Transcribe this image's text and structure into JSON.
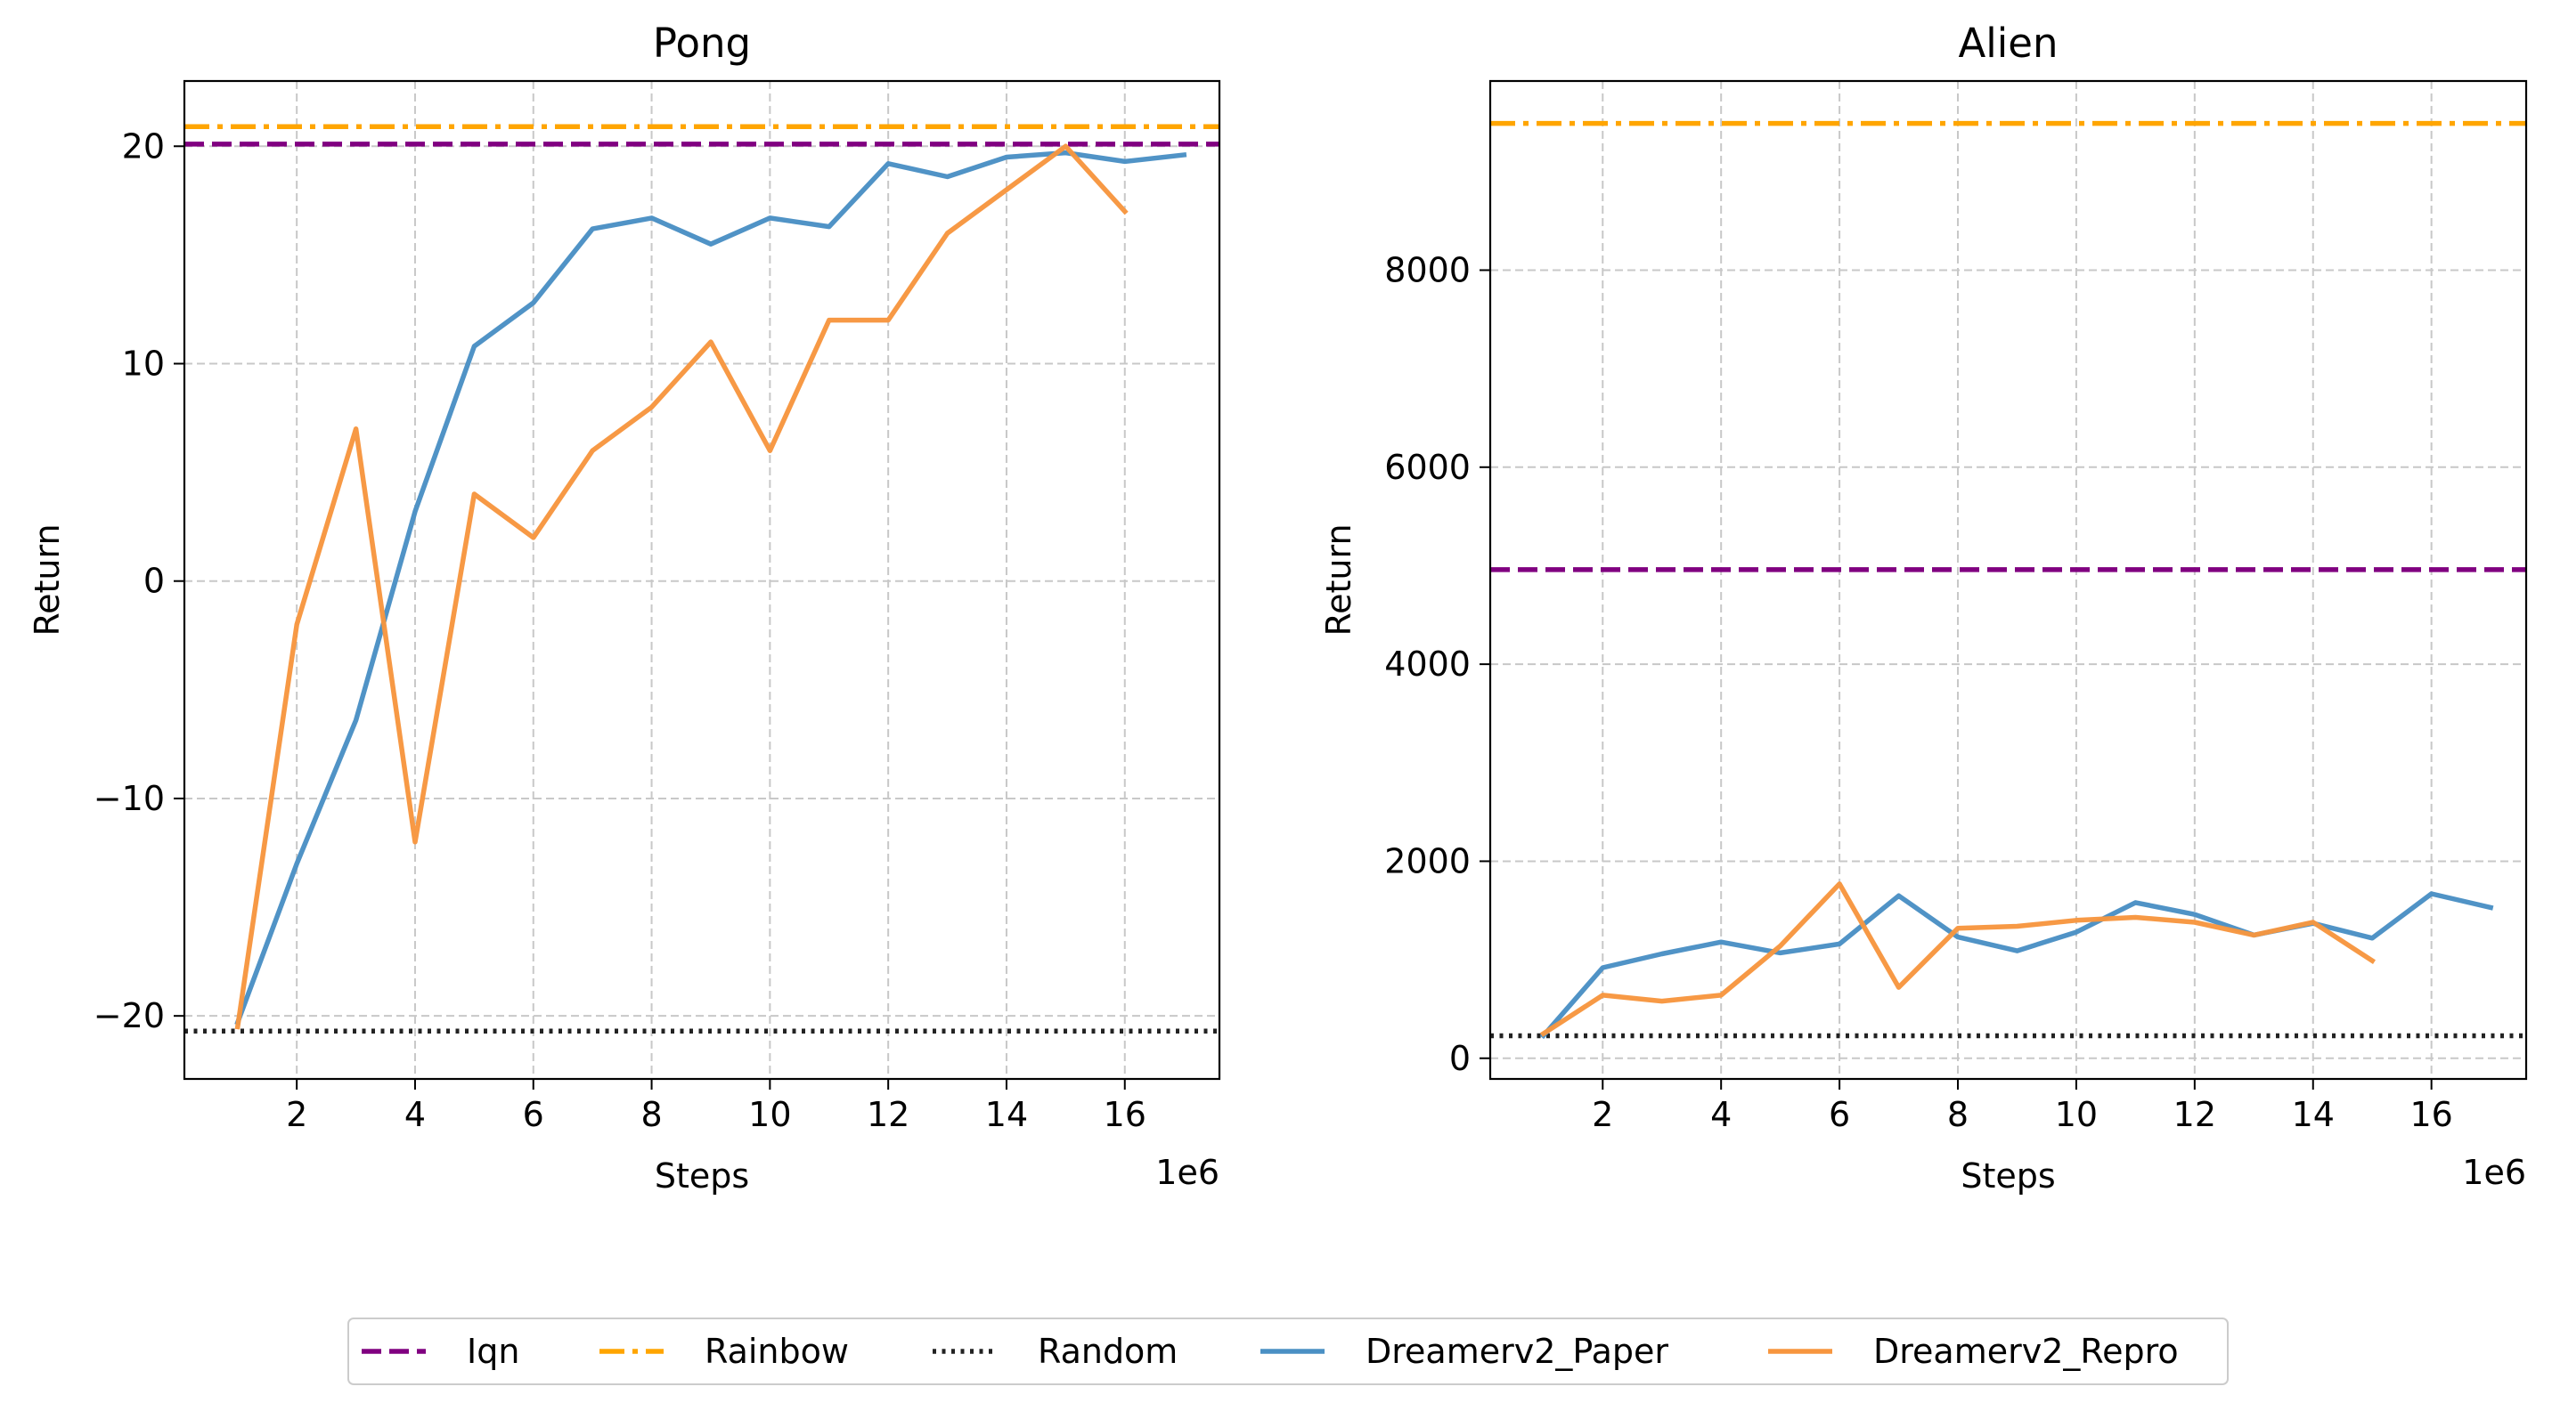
{
  "legend": {
    "placement": "bottom-center",
    "entries": [
      {
        "label": "Iqn",
        "color": "#800080",
        "style": "dashed"
      },
      {
        "label": "Rainbow",
        "color": "#FFA500",
        "style": "dashdot"
      },
      {
        "label": "Random",
        "color": "#222222",
        "style": "dotted"
      },
      {
        "label": "Dreamerv2_Paper",
        "color": "#4A90C4",
        "style": "solid"
      },
      {
        "label": "Dreamerv2_Repro",
        "color": "#F7963F",
        "style": "solid"
      }
    ]
  },
  "chart_data": [
    {
      "type": "line",
      "title": "Pong",
      "xlabel": "Steps",
      "ylabel": "Return",
      "x_offset_label": "1e6",
      "xlim": [
        0.1,
        17.6
      ],
      "ylim": [
        -22.9,
        23.0
      ],
      "xticks": [
        2,
        4,
        6,
        8,
        10,
        12,
        14,
        16
      ],
      "xtick_labels": [
        "2",
        "4",
        "6",
        "8",
        "10",
        "12",
        "14",
        "16"
      ],
      "yticks": [
        -20,
        -10,
        0,
        10,
        20
      ],
      "ytick_labels": [
        "−20",
        "−10",
        "0",
        "10",
        "20"
      ],
      "grid": true,
      "hlines": [
        {
          "name": "Iqn",
          "y": 20.1,
          "color": "#800080",
          "style": "dashed"
        },
        {
          "name": "Rainbow",
          "y": 20.9,
          "color": "#FFA500",
          "style": "dashdot"
        },
        {
          "name": "Random",
          "y": -20.7,
          "color": "#222222",
          "style": "dotted"
        }
      ],
      "series": [
        {
          "name": "Dreamerv2_Paper",
          "color": "#4A90C4",
          "x": [
            1,
            2,
            3,
            4,
            5,
            6,
            7,
            8,
            9,
            10,
            11,
            12,
            13,
            14,
            15,
            16,
            17
          ],
          "values": [
            -20.3,
            -13.0,
            -6.4,
            3.2,
            10.8,
            12.8,
            16.2,
            16.7,
            15.5,
            16.7,
            16.3,
            19.2,
            18.6,
            19.5,
            19.7,
            19.3,
            19.6
          ]
        },
        {
          "name": "Dreamerv2_Repro",
          "color": "#F7963F",
          "x": [
            1,
            2,
            3,
            4,
            5,
            6,
            7,
            8,
            9,
            10,
            11,
            12,
            13,
            14,
            15,
            16
          ],
          "values": [
            -20.5,
            -2.0,
            7.0,
            -12.0,
            4.0,
            2.0,
            6.0,
            8.0,
            11.0,
            6.0,
            12.0,
            12.0,
            16.0,
            18.0,
            20.0,
            17.0
          ]
        }
      ]
    },
    {
      "type": "line",
      "title": "Alien",
      "xlabel": "Steps",
      "ylabel": "Return",
      "x_offset_label": "1e6",
      "xlim": [
        0.1,
        17.6
      ],
      "ylim": [
        -210,
        9920
      ],
      "xticks": [
        2,
        4,
        6,
        8,
        10,
        12,
        14,
        16
      ],
      "xtick_labels": [
        "2",
        "4",
        "6",
        "8",
        "10",
        "12",
        "14",
        "16"
      ],
      "yticks": [
        0,
        2000,
        4000,
        6000,
        8000
      ],
      "ytick_labels": [
        "0",
        "2000",
        "4000",
        "6000",
        "8000"
      ],
      "grid": true,
      "hlines": [
        {
          "name": "Iqn",
          "y": 4960,
          "color": "#800080",
          "style": "dashed"
        },
        {
          "name": "Rainbow",
          "y": 9490,
          "color": "#FFA500",
          "style": "dashdot"
        },
        {
          "name": "Random",
          "y": 228,
          "color": "#222222",
          "style": "dotted"
        }
      ],
      "series": [
        {
          "name": "Dreamerv2_Paper",
          "color": "#4A90C4",
          "x": [
            1,
            2,
            3,
            4,
            5,
            6,
            7,
            8,
            9,
            10,
            11,
            12,
            13,
            14,
            15,
            16,
            17
          ],
          "values": [
            230,
            920,
            1060,
            1180,
            1070,
            1160,
            1650,
            1230,
            1090,
            1280,
            1580,
            1460,
            1250,
            1370,
            1220,
            1670,
            1530
          ]
        },
        {
          "name": "Dreamerv2_Repro",
          "color": "#F7963F",
          "x": [
            1,
            2,
            3,
            4,
            5,
            6,
            7,
            8,
            9,
            10,
            11,
            12,
            13,
            14,
            15
          ],
          "values": [
            250,
            640,
            580,
            640,
            1140,
            1770,
            720,
            1320,
            1340,
            1400,
            1430,
            1380,
            1250,
            1380,
            990
          ]
        }
      ]
    }
  ]
}
